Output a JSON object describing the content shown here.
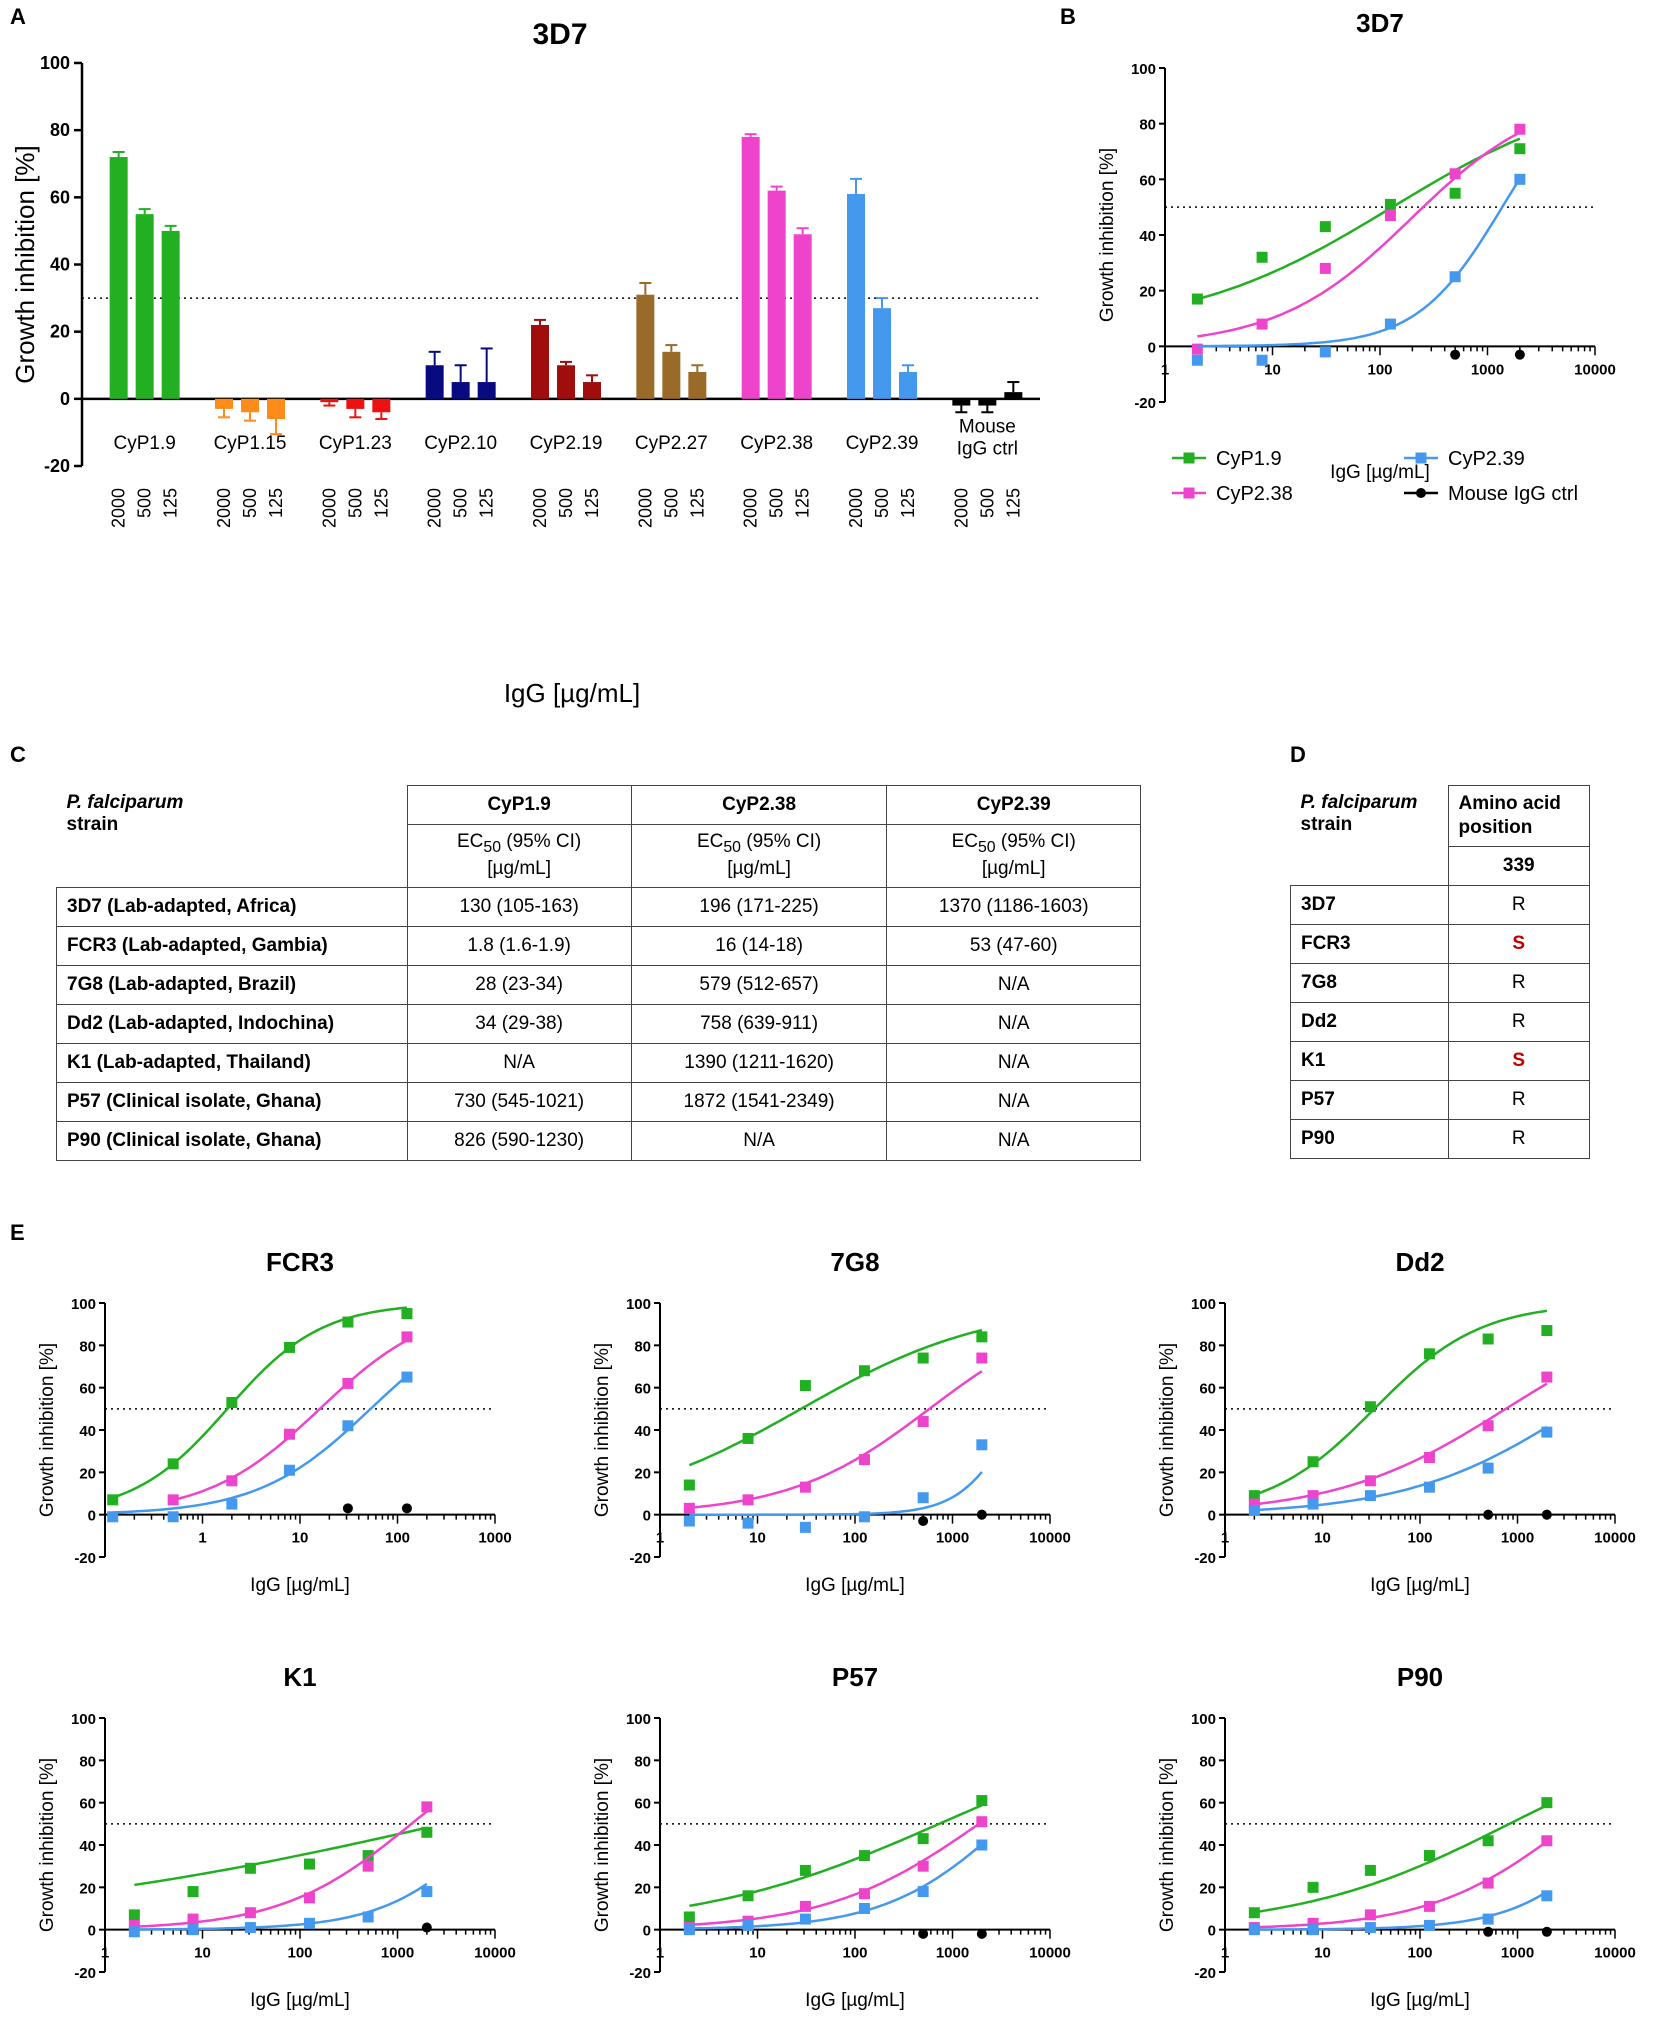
{
  "panels": {
    "A": "A",
    "B": "B",
    "C": "C",
    "D": "D",
    "E": "E"
  },
  "colors": {
    "CyP1.9": "#22b022",
    "CyP2.38": "#ee44cc",
    "CyP2.39": "#4499ee",
    "Mouse IgG ctrl": "#000000"
  },
  "chart_data": [
    {
      "type": "bar",
      "title": "3D7",
      "xlabel": "IgG [µg/mL]",
      "ylabel": "Growth inhibition [%]",
      "ylim": [
        -20,
        100
      ],
      "yticks": [
        -20,
        0,
        20,
        40,
        60,
        80,
        100
      ],
      "threshold": 30,
      "concentrations": [
        "2000",
        "500",
        "125"
      ],
      "groups": [
        {
          "name": "CyP1.9",
          "color": "#22b022",
          "values": [
            72,
            55,
            50
          ],
          "errors": [
            1.5,
            1.5,
            1.5
          ]
        },
        {
          "name": "CyP1.15",
          "color": "#ff8c1a",
          "values": [
            -3,
            -4,
            -6
          ],
          "errors": [
            2.5,
            2.5,
            4.5
          ]
        },
        {
          "name": "CyP1.23",
          "color": "#ee1111",
          "values": [
            -1,
            -3,
            -4
          ],
          "errors": [
            1,
            2.5,
            2
          ]
        },
        {
          "name": "CyP2.10",
          "color": "#0a0a80",
          "values": [
            10,
            5,
            5
          ],
          "errors": [
            4,
            5,
            10
          ]
        },
        {
          "name": "CyP2.19",
          "color": "#a00d0d",
          "values": [
            22,
            10,
            5
          ],
          "errors": [
            1.5,
            1,
            2
          ]
        },
        {
          "name": "CyP2.27",
          "color": "#9a6a28",
          "values": [
            31,
            14,
            8
          ],
          "errors": [
            3.5,
            2,
            2
          ]
        },
        {
          "name": "CyP2.38",
          "color": "#ee44cc",
          "values": [
            78,
            62,
            49
          ],
          "errors": [
            0.8,
            1.2,
            1.8
          ]
        },
        {
          "name": "CyP2.39",
          "color": "#4499ee",
          "values": [
            61,
            27,
            8
          ],
          "errors": [
            4.5,
            3,
            2
          ]
        },
        {
          "name": "Mouse IgG ctrl",
          "color": "#000000",
          "values": [
            -2,
            -2,
            2
          ],
          "errors": [
            2,
            2,
            3
          ]
        }
      ]
    },
    {
      "type": "scatter",
      "title": "3D7",
      "xlabel": "IgG [µg/mL]",
      "ylabel": "Growth inhibition [%]",
      "xscale": "log",
      "xlim": [
        1,
        10000
      ],
      "xticks": [
        1,
        10,
        100,
        1000,
        10000
      ],
      "ylim": [
        -20,
        100
      ],
      "yticks": [
        -20,
        0,
        20,
        40,
        60,
        80,
        100
      ],
      "threshold": 50,
      "legend": "below",
      "series": [
        {
          "name": "CyP1.9",
          "x": [
            2,
            8,
            31,
            125,
            500,
            2000
          ],
          "y": [
            17,
            32,
            43,
            51,
            55,
            71
          ],
          "fit": {
            "bottom": 5,
            "top": 95,
            "ec50": 130,
            "hill": 0.45
          }
        },
        {
          "name": "CyP2.38",
          "x": [
            2,
            8,
            31,
            125,
            500,
            2000
          ],
          "y": [
            -1,
            8,
            28,
            47,
            62,
            78
          ],
          "fit": {
            "bottom": 0,
            "top": 92,
            "ec50": 196,
            "hill": 0.7
          }
        },
        {
          "name": "CyP2.39",
          "x": [
            2,
            8,
            31,
            125,
            500,
            2000
          ],
          "y": [
            -5,
            -5,
            -2,
            8,
            25,
            60
          ],
          "fit": {
            "bottom": 0,
            "top": 100,
            "ec50": 1370,
            "hill": 1.1
          }
        },
        {
          "name": "Mouse IgG ctrl",
          "x": [
            500,
            2000
          ],
          "y": [
            -3,
            -3
          ]
        }
      ]
    },
    {
      "type": "table",
      "title": "EC50 (95% CI) [µg/mL]",
      "header_strain": [
        "P. falciparum",
        "strain"
      ],
      "columns": [
        "CyP1.9",
        "CyP2.38",
        "CyP2.39"
      ],
      "subheader": [
        "EC",
        "50",
        " (95% CI)",
        "[µg/mL]"
      ],
      "rows": [
        {
          "strain": "3D7 (Lab-adapted, Africa)",
          "values": [
            "130 (105-163)",
            "196 (171-225)",
            "1370 (1186-1603)"
          ]
        },
        {
          "strain": "FCR3 (Lab-adapted, Gambia)",
          "values": [
            "1.8 (1.6-1.9)",
            "16 (14-18)",
            "53 (47-60)"
          ]
        },
        {
          "strain": "7G8 (Lab-adapted, Brazil)",
          "values": [
            "28 (23-34)",
            "579 (512-657)",
            "N/A"
          ]
        },
        {
          "strain": "Dd2 (Lab-adapted, Indochina)",
          "values": [
            "34 (29-38)",
            "758 (639-911)",
            "N/A"
          ]
        },
        {
          "strain": "K1 (Lab-adapted, Thailand)",
          "values": [
            "N/A",
            "1390 (1211-1620)",
            "N/A"
          ]
        },
        {
          "strain": "P57 (Clinical isolate, Ghana)",
          "values": [
            "730 (545-1021)",
            "1872 (1541-2349)",
            "N/A"
          ]
        },
        {
          "strain": "P90 (Clinical isolate, Ghana)",
          "values": [
            "826 (590-1230)",
            "N/A",
            "N/A"
          ]
        }
      ]
    },
    {
      "type": "table",
      "title": "Amino acid position",
      "header_strain": [
        "P. falciparum",
        "strain"
      ],
      "header_pos": [
        "Amino acid",
        "position"
      ],
      "position": "339",
      "rows": [
        {
          "strain": "3D7",
          "aa": "R",
          "highlight": false
        },
        {
          "strain": "FCR3",
          "aa": "S",
          "highlight": true
        },
        {
          "strain": "7G8",
          "aa": "R",
          "highlight": false
        },
        {
          "strain": "Dd2",
          "aa": "R",
          "highlight": false
        },
        {
          "strain": "K1",
          "aa": "S",
          "highlight": true
        },
        {
          "strain": "P57",
          "aa": "R",
          "highlight": false
        },
        {
          "strain": "P90",
          "aa": "R",
          "highlight": false
        }
      ]
    },
    {
      "type": "scatter",
      "title": "FCR3",
      "xlabel": "IgG [µg/mL]",
      "ylabel": "Growth inhibition [%]",
      "xscale": "log",
      "xlim": [
        0.1,
        1000
      ],
      "xticks": [
        0.1,
        1,
        10,
        100,
        1000
      ],
      "xticklabels": [
        "",
        "1",
        "10",
        "100",
        "1000"
      ],
      "ylim": [
        -20,
        100
      ],
      "yticks": [
        -20,
        0,
        20,
        40,
        60,
        80,
        100
      ],
      "threshold": 50,
      "series": [
        {
          "name": "CyP1.9",
          "x": [
            0.12,
            0.5,
            2,
            7.8,
            31,
            125
          ],
          "y": [
            7,
            24,
            53,
            79,
            91,
            95
          ],
          "fit": {
            "bottom": 0,
            "top": 100,
            "ec50": 1.8,
            "hill": 0.9
          }
        },
        {
          "name": "CyP2.38",
          "x": [
            0.5,
            2,
            7.8,
            31,
            125
          ],
          "y": [
            7,
            16,
            38,
            62,
            84
          ],
          "fit": {
            "bottom": 0,
            "top": 100,
            "ec50": 16,
            "hill": 0.75
          }
        },
        {
          "name": "CyP2.39",
          "x": [
            0.12,
            0.5,
            2,
            7.8,
            31,
            125
          ],
          "y": [
            -1,
            -1,
            5,
            21,
            42,
            65
          ],
          "fit": {
            "bottom": 0,
            "top": 100,
            "ec50": 53,
            "hill": 0.75
          }
        },
        {
          "name": "Mouse IgG ctrl",
          "x": [
            31,
            125
          ],
          "y": [
            3,
            3
          ]
        }
      ]
    },
    {
      "type": "scatter",
      "title": "7G8",
      "xlabel": "IgG [µg/mL]",
      "ylabel": "Growth inhibition [%]",
      "xscale": "log",
      "xlim": [
        1,
        10000
      ],
      "xticks": [
        1,
        10,
        100,
        1000,
        10000
      ],
      "xticklabels": [
        "1",
        "10",
        "100",
        "1000",
        "10000"
      ],
      "ylim": [
        -20,
        100
      ],
      "yticks": [
        -20,
        0,
        20,
        40,
        60,
        80,
        100
      ],
      "threshold": 50,
      "series": [
        {
          "name": "CyP1.9",
          "x": [
            2,
            8,
            31,
            125,
            500,
            2000
          ],
          "y": [
            14,
            36,
            61,
            68,
            74,
            84
          ],
          "fit": {
            "bottom": 0,
            "top": 100,
            "ec50": 28,
            "hill": 0.45
          }
        },
        {
          "name": "CyP2.38",
          "x": [
            2,
            8,
            31,
            125,
            500,
            2000
          ],
          "y": [
            3,
            7,
            13,
            26,
            44,
            74
          ],
          "fit": {
            "bottom": 0,
            "top": 100,
            "ec50": 579,
            "hill": 0.6
          }
        },
        {
          "name": "CyP2.39",
          "x": [
            2,
            8,
            31,
            125,
            500,
            2000
          ],
          "y": [
            -3,
            -4,
            -6,
            -1,
            8,
            33
          ],
          "fit": {
            "bottom": 0,
            "top": 100,
            "ec50": 5000,
            "hill": 1.5
          }
        },
        {
          "name": "Mouse IgG ctrl",
          "x": [
            500,
            2000
          ],
          "y": [
            -3,
            0
          ]
        }
      ]
    },
    {
      "type": "scatter",
      "title": "Dd2",
      "xlabel": "IgG [µg/mL]",
      "ylabel": "Growth inhibition [%]",
      "xscale": "log",
      "xlim": [
        1,
        10000
      ],
      "xticks": [
        1,
        10,
        100,
        1000,
        10000
      ],
      "xticklabels": [
        "1",
        "10",
        "100",
        "1000",
        "10000"
      ],
      "ylim": [
        -20,
        100
      ],
      "yticks": [
        -20,
        0,
        20,
        40,
        60,
        80,
        100
      ],
      "threshold": 50,
      "series": [
        {
          "name": "CyP1.9",
          "x": [
            2,
            8,
            31,
            125,
            500,
            2000
          ],
          "y": [
            9,
            25,
            51,
            76,
            83,
            87
          ],
          "fit": {
            "bottom": 0,
            "top": 100,
            "ec50": 34,
            "hill": 0.8
          }
        },
        {
          "name": "CyP2.38",
          "x": [
            2,
            8,
            31,
            125,
            500,
            2000
          ],
          "y": [
            5,
            9,
            16,
            27,
            42,
            65
          ],
          "fit": {
            "bottom": 0,
            "top": 100,
            "ec50": 758,
            "hill": 0.5
          }
        },
        {
          "name": "CyP2.39",
          "x": [
            2,
            8,
            31,
            125,
            500,
            2000
          ],
          "y": [
            2,
            5,
            9,
            13,
            22,
            39
          ],
          "fit": {
            "bottom": 0,
            "top": 100,
            "ec50": 4000,
            "hill": 0.5
          }
        },
        {
          "name": "Mouse IgG ctrl",
          "x": [
            500,
            2000
          ],
          "y": [
            0,
            0
          ]
        }
      ]
    },
    {
      "type": "scatter",
      "title": "K1",
      "xlabel": "IgG [µg/mL]",
      "ylabel": "Growth inhibition [%]",
      "xscale": "log",
      "xlim": [
        1,
        10000
      ],
      "xticks": [
        1,
        10,
        100,
        1000,
        10000
      ],
      "xticklabels": [
        "1",
        "10",
        "100",
        "1000",
        "10000"
      ],
      "ylim": [
        -20,
        100
      ],
      "yticks": [
        -20,
        0,
        20,
        40,
        60,
        80,
        100
      ],
      "threshold": 50,
      "series": [
        {
          "name": "CyP1.9",
          "x": [
            2,
            8,
            31,
            125,
            500,
            2000
          ],
          "y": [
            7,
            18,
            29,
            31,
            35,
            46
          ],
          "fit": {
            "bottom": 0,
            "top": 100,
            "ec50": 3000,
            "hill": 0.18
          }
        },
        {
          "name": "CyP2.38",
          "x": [
            2,
            8,
            31,
            125,
            500,
            2000
          ],
          "y": [
            2,
            5,
            8,
            15,
            30,
            58
          ],
          "fit": {
            "bottom": 0,
            "top": 100,
            "ec50": 1390,
            "hill": 0.65
          }
        },
        {
          "name": "CyP2.39",
          "x": [
            2,
            8,
            31,
            125,
            500,
            2000
          ],
          "y": [
            -1,
            0,
            1,
            3,
            6,
            18
          ],
          "fit": {
            "bottom": 0,
            "top": 100,
            "ec50": 10000,
            "hill": 0.8
          }
        },
        {
          "name": "Mouse IgG ctrl",
          "x": [
            2000
          ],
          "y": [
            1
          ]
        }
      ]
    },
    {
      "type": "scatter",
      "title": "P57",
      "xlabel": "IgG [µg/mL]",
      "ylabel": "Growth inhibition [%]",
      "xscale": "log",
      "xlim": [
        1,
        10000
      ],
      "xticks": [
        1,
        10,
        100,
        1000,
        10000
      ],
      "xticklabels": [
        "1",
        "10",
        "100",
        "1000",
        "10000"
      ],
      "ylim": [
        -20,
        100
      ],
      "yticks": [
        -20,
        0,
        20,
        40,
        60,
        80,
        100
      ],
      "threshold": 50,
      "series": [
        {
          "name": "CyP1.9",
          "x": [
            2,
            8,
            31,
            125,
            500,
            2000
          ],
          "y": [
            6,
            16,
            28,
            35,
            43,
            61
          ],
          "fit": {
            "bottom": 0,
            "top": 100,
            "ec50": 730,
            "hill": 0.35
          }
        },
        {
          "name": "CyP2.38",
          "x": [
            2,
            8,
            31,
            125,
            500,
            2000
          ],
          "y": [
            1,
            4,
            11,
            17,
            30,
            51
          ],
          "fit": {
            "bottom": 0,
            "top": 100,
            "ec50": 1872,
            "hill": 0.55
          }
        },
        {
          "name": "CyP2.39",
          "x": [
            2,
            8,
            31,
            125,
            500,
            2000
          ],
          "y": [
            0,
            2,
            5,
            10,
            18,
            40
          ],
          "fit": {
            "bottom": 0,
            "top": 100,
            "ec50": 3500,
            "hill": 0.7
          }
        },
        {
          "name": "Mouse IgG ctrl",
          "x": [
            500,
            2000
          ],
          "y": [
            -2,
            -2
          ]
        }
      ]
    },
    {
      "type": "scatter",
      "title": "P90",
      "xlabel": "IgG [µg/mL]",
      "ylabel": "Growth inhibition [%]",
      "xscale": "log",
      "xlim": [
        1,
        10000
      ],
      "xticks": [
        1,
        10,
        100,
        1000,
        10000
      ],
      "xticklabels": [
        "1",
        "10",
        "100",
        "1000",
        "10000"
      ],
      "ylim": [
        -20,
        100
      ],
      "yticks": [
        -20,
        0,
        20,
        40,
        60,
        80,
        100
      ],
      "threshold": 50,
      "series": [
        {
          "name": "CyP1.9",
          "x": [
            2,
            8,
            31,
            125,
            500,
            2000
          ],
          "y": [
            8,
            20,
            28,
            35,
            42,
            60
          ],
          "fit": {
            "bottom": 0,
            "top": 100,
            "ec50": 826,
            "hill": 0.4
          }
        },
        {
          "name": "CyP2.38",
          "x": [
            2,
            8,
            31,
            125,
            500,
            2000
          ],
          "y": [
            1,
            3,
            7,
            11,
            22,
            42
          ],
          "fit": {
            "bottom": 0,
            "top": 100,
            "ec50": 3500,
            "hill": 0.6
          }
        },
        {
          "name": "CyP2.39",
          "x": [
            2,
            8,
            31,
            125,
            500,
            2000
          ],
          "y": [
            0,
            0,
            1,
            2,
            5,
            16
          ],
          "fit": {
            "bottom": 0,
            "top": 100,
            "ec50": 12000,
            "hill": 0.85
          }
        },
        {
          "name": "Mouse IgG ctrl",
          "x": [
            500,
            2000
          ],
          "y": [
            -1,
            -1
          ]
        }
      ]
    }
  ]
}
